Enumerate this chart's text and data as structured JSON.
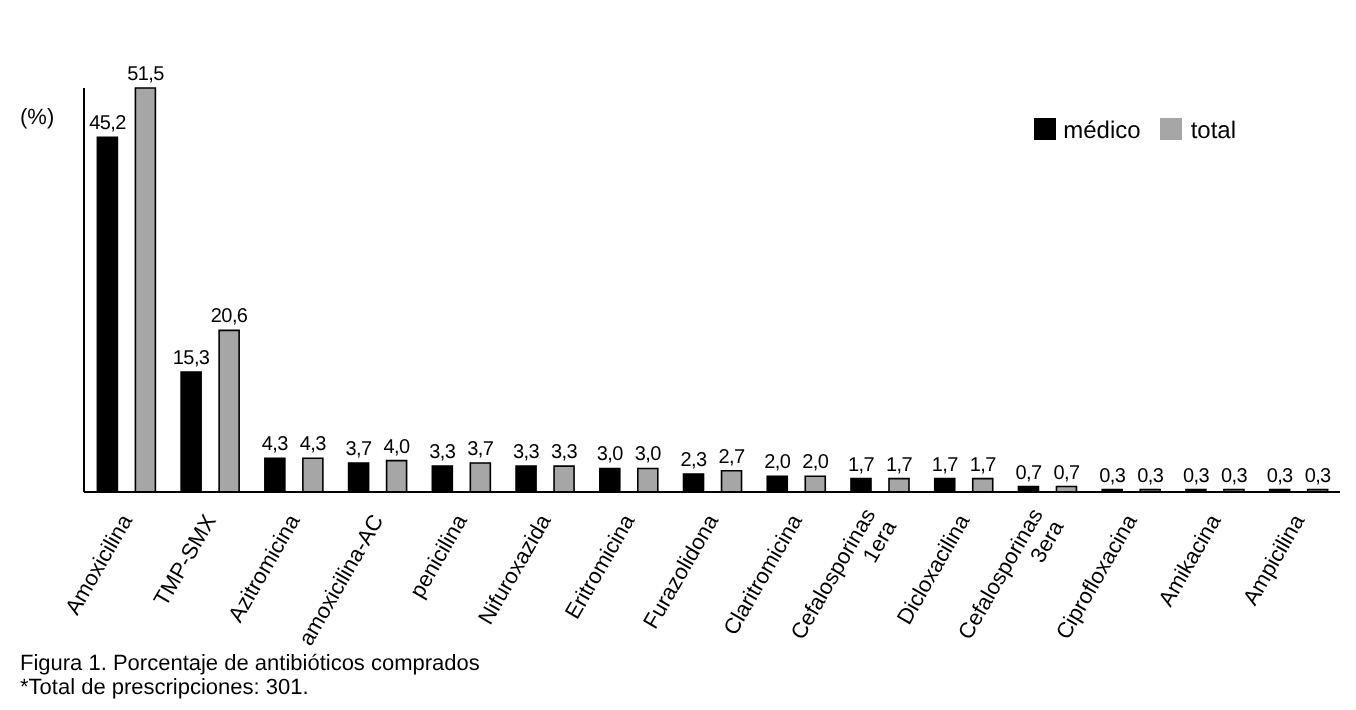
{
  "chart_data": {
    "type": "bar",
    "ylabel": "(%)",
    "categories": [
      "Amoxicilina",
      "TMP-SMX",
      "Azitromicina",
      "amoxicilina-AC",
      "penicilina",
      "Nifuroxazida",
      "Eritromicina",
      "Furazolidona",
      "Claritromicina",
      "Cefalosporinas\n1era",
      "Dicloxacilina",
      "Cefalosporinas\n3era",
      "Ciprofloxacina",
      "Amikacina",
      "Ampicilina"
    ],
    "series": [
      {
        "name": "médico",
        "color": "#000000",
        "values": [
          45.2,
          15.3,
          4.3,
          3.7,
          3.3,
          3.3,
          3.0,
          2.3,
          2.0,
          1.7,
          1.7,
          0.7,
          0.3,
          0.3,
          0.3
        ],
        "value_labels": [
          "45,2",
          "15,3",
          "4,3",
          "3,7",
          "3,3",
          "3,3",
          "3,0",
          "2,3",
          "2,0",
          "1,7",
          "1,7",
          "0,7",
          "0,3",
          "0,3",
          "0,3"
        ]
      },
      {
        "name": "total",
        "color": "#a6a6a6",
        "values": [
          51.5,
          20.6,
          4.3,
          4.0,
          3.7,
          3.3,
          3.0,
          2.7,
          2.0,
          1.7,
          1.7,
          0.7,
          0.3,
          0.3,
          0.3
        ],
        "value_labels": [
          "51,5",
          "20,6",
          "4,3",
          "4,0",
          "3,7",
          "3,3",
          "3,0",
          "2,7",
          "2,0",
          "1,7",
          "1,7",
          "0,7",
          "0,3",
          "0,3",
          "0,3"
        ]
      }
    ],
    "legend": "top right",
    "annotations": [
      "Figura 1. Porcentaje de antibióticos comprados",
      "*Total de prescripciones: 301."
    ]
  }
}
